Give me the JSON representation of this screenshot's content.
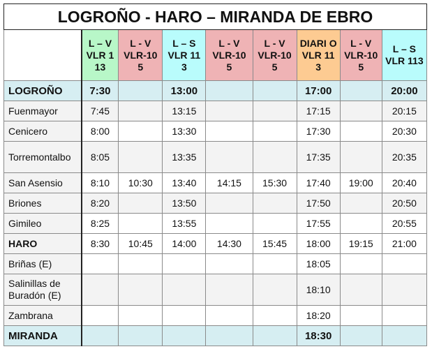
{
  "title": "LOGROÑO - HARO – MIRANDA DE EBRO",
  "columns": [
    {
      "days": "L – V",
      "line": "VLR 113",
      "color": "#b8f7c8"
    },
    {
      "days": "L - V",
      "line": "VLR-10 5",
      "color": "#efb3b5"
    },
    {
      "days": "L – S",
      "line": "VLR 113",
      "color": "#b9fcfc"
    },
    {
      "days": "L - V",
      "line": "VLR-10 5",
      "color": "#efb3b5"
    },
    {
      "days": "L - V",
      "line": "VLR-10 5",
      "color": "#efb3b5"
    },
    {
      "days": "DIARI O",
      "line": "VLR 113",
      "color": "#fdcb92"
    },
    {
      "days": "L - V",
      "line": "VLR-10 5",
      "color": "#efb3b5"
    },
    {
      "days": "L – S",
      "line": "VLR 113",
      "color": "#b9fcfc"
    }
  ],
  "rows": [
    {
      "station": "LOGROÑO",
      "times": [
        "7:30",
        "",
        "13:00",
        "",
        "",
        "17:00",
        "",
        "20:00"
      ]
    },
    {
      "station": "Fuenmayor",
      "times": [
        "7:45",
        "",
        "13:15",
        "",
        "",
        "17:15",
        "",
        "20:15"
      ]
    },
    {
      "station": "Cenicero",
      "times": [
        "8:00",
        "",
        "13:30",
        "",
        "",
        "17:30",
        "",
        "20:30"
      ]
    },
    {
      "station": "Torremontalbo",
      "times": [
        "8:05",
        "",
        "13:35",
        "",
        "",
        "17:35",
        "",
        "20:35"
      ]
    },
    {
      "station": "San Asensio",
      "times": [
        "8:10",
        "10:30",
        "13:40",
        "14:15",
        "15:30",
        "17:40",
        "19:00",
        "20:40"
      ]
    },
    {
      "station": "Briones",
      "times": [
        "8:20",
        "",
        "13:50",
        "",
        "",
        "17:50",
        "",
        "20:50"
      ]
    },
    {
      "station": "Gimileo",
      "times": [
        "8:25",
        "",
        "13:55",
        "",
        "",
        "17:55",
        "",
        "20:55"
      ]
    },
    {
      "station": "HARO",
      "times": [
        "8:30",
        "10:45",
        "14:00",
        "14:30",
        "15:45",
        "18:00",
        "19:15",
        "21:00"
      ]
    },
    {
      "station": "Briñas (E)",
      "times": [
        "",
        "",
        "",
        "",
        "",
        "18:05",
        "",
        ""
      ]
    },
    {
      "station": "Salinillas de Buradón (E)",
      "times": [
        "",
        "",
        "",
        "",
        "",
        "18:10",
        "",
        ""
      ]
    },
    {
      "station": "Zambrana",
      "times": [
        "",
        "",
        "",
        "",
        "",
        "18:20",
        "",
        ""
      ]
    },
    {
      "station": "MIRANDA",
      "times": [
        "",
        "",
        "",
        "",
        "",
        "18:30",
        "",
        ""
      ]
    }
  ]
}
